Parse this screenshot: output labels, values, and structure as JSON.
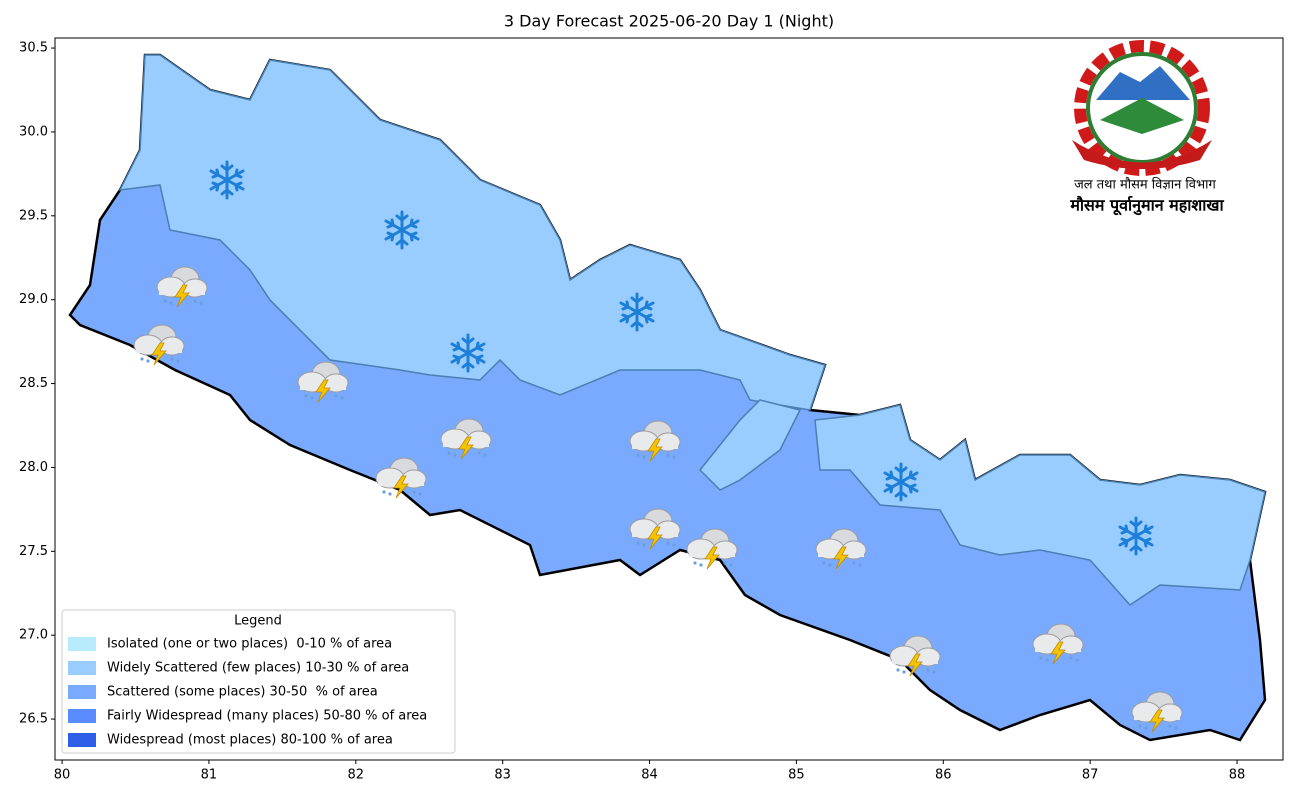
{
  "title": "3 Day Forecast 2025-06-20 Day 1 (Night)",
  "map": {
    "xlim": [
      79.952,
      88.313
    ],
    "ylim": [
      26.256,
      30.56
    ],
    "xticks": [
      80,
      81,
      82,
      83,
      84,
      85,
      86,
      87,
      88
    ],
    "yticks": [
      {
        "value": 26.5,
        "label": "26.5"
      },
      {
        "value": 27,
        "label": "27.0"
      },
      {
        "value": 27.5,
        "label": "27.5"
      },
      {
        "value": 28,
        "label": "28.0"
      },
      {
        "value": 28.5,
        "label": "28.5"
      },
      {
        "value": 29,
        "label": "29.0"
      },
      {
        "value": 29.5,
        "label": "29.5"
      },
      {
        "value": 30,
        "label": "30.0"
      },
      {
        "value": 30.5,
        "label": "30.5"
      }
    ]
  },
  "legend": {
    "title": "Legend",
    "items": [
      {
        "label": "Isolated (one or two places)  0-10 % of area",
        "color": "#b8ecfc"
      },
      {
        "label": "Widely Scattered (few places) 10-30 % of area",
        "color": "#99ccff"
      },
      {
        "label": "Scattered (some places) 30-50  % of area",
        "color": "#7aaaff"
      },
      {
        "label": "Fairly Widespread (many places) 50-80 % of area",
        "color": "#5a8cff"
      },
      {
        "label": "Widespread (most places) 80-100 % of area",
        "color": "#2e5ee8"
      }
    ]
  },
  "logo": {
    "line1": "जल तथा मौसम विज्ञान विभाग",
    "line2": "मौसम पूर्वानुमान महाशाखा"
  }
}
